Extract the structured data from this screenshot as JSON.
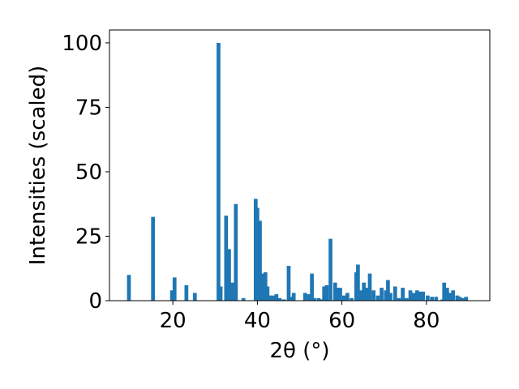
{
  "chart_data": {
    "type": "bar",
    "title": "",
    "xlabel": "2θ (°)",
    "ylabel": "Intensities (scaled)",
    "xlim": [
      5,
      95
    ],
    "ylim": [
      0,
      105
    ],
    "xticks": [
      "20",
      "40",
      "60",
      "80"
    ],
    "yticks": [
      "0",
      "25",
      "50",
      "75",
      "100"
    ],
    "grid": false,
    "bar_color": "#1f77b4",
    "bar_width": 0.9,
    "x": [
      9.6,
      15.3,
      19.8,
      20.4,
      23.2,
      25.2,
      30.8,
      31.3,
      32.6,
      33.3,
      34.0,
      34.9,
      36.7,
      39.6,
      40.0,
      40.6,
      41.2,
      41.9,
      42.4,
      43.1,
      43.6,
      44.5,
      45.3,
      46.3,
      47.4,
      48.0,
      48.6,
      51.3,
      52.2,
      52.9,
      53.5,
      54.5,
      55.0,
      55.8,
      56.4,
      57.3,
      58.4,
      59.1,
      59.6,
      60.5,
      61.3,
      62.3,
      63.4,
      63.8,
      64.6,
      65.2,
      65.8,
      66.6,
      67.5,
      68.5,
      69.4,
      70.4,
      70.9,
      71.5,
      72.6,
      73.5,
      74.4,
      75.3,
      76.2,
      77.0,
      77.8,
      78.6,
      79.2,
      80.3,
      81.3,
      82.3,
      83.8,
      84.2,
      84.9,
      85.6,
      86.3,
      87.3,
      87.9,
      88.6,
      89.4
    ],
    "values": [
      10,
      32.5,
      4,
      9,
      6,
      3,
      100,
      5.5,
      33,
      20,
      7,
      37.5,
      1,
      39.5,
      36,
      31,
      10.5,
      11,
      5.5,
      2,
      2,
      2.5,
      1,
      0.5,
      13.5,
      1.5,
      3,
      3,
      2.5,
      10.5,
      1,
      1,
      0.5,
      5.5,
      6,
      24,
      7,
      5,
      5,
      2,
      3,
      1,
      11,
      14,
      4,
      7,
      5,
      10.5,
      4,
      2,
      5,
      4,
      8,
      3,
      5.5,
      1,
      5,
      1,
      4,
      3,
      4,
      3.5,
      3.5,
      2,
      1.5,
      1.5,
      0.5,
      7,
      5,
      3,
      4,
      2,
      1.5,
      1,
      1.5
    ]
  }
}
